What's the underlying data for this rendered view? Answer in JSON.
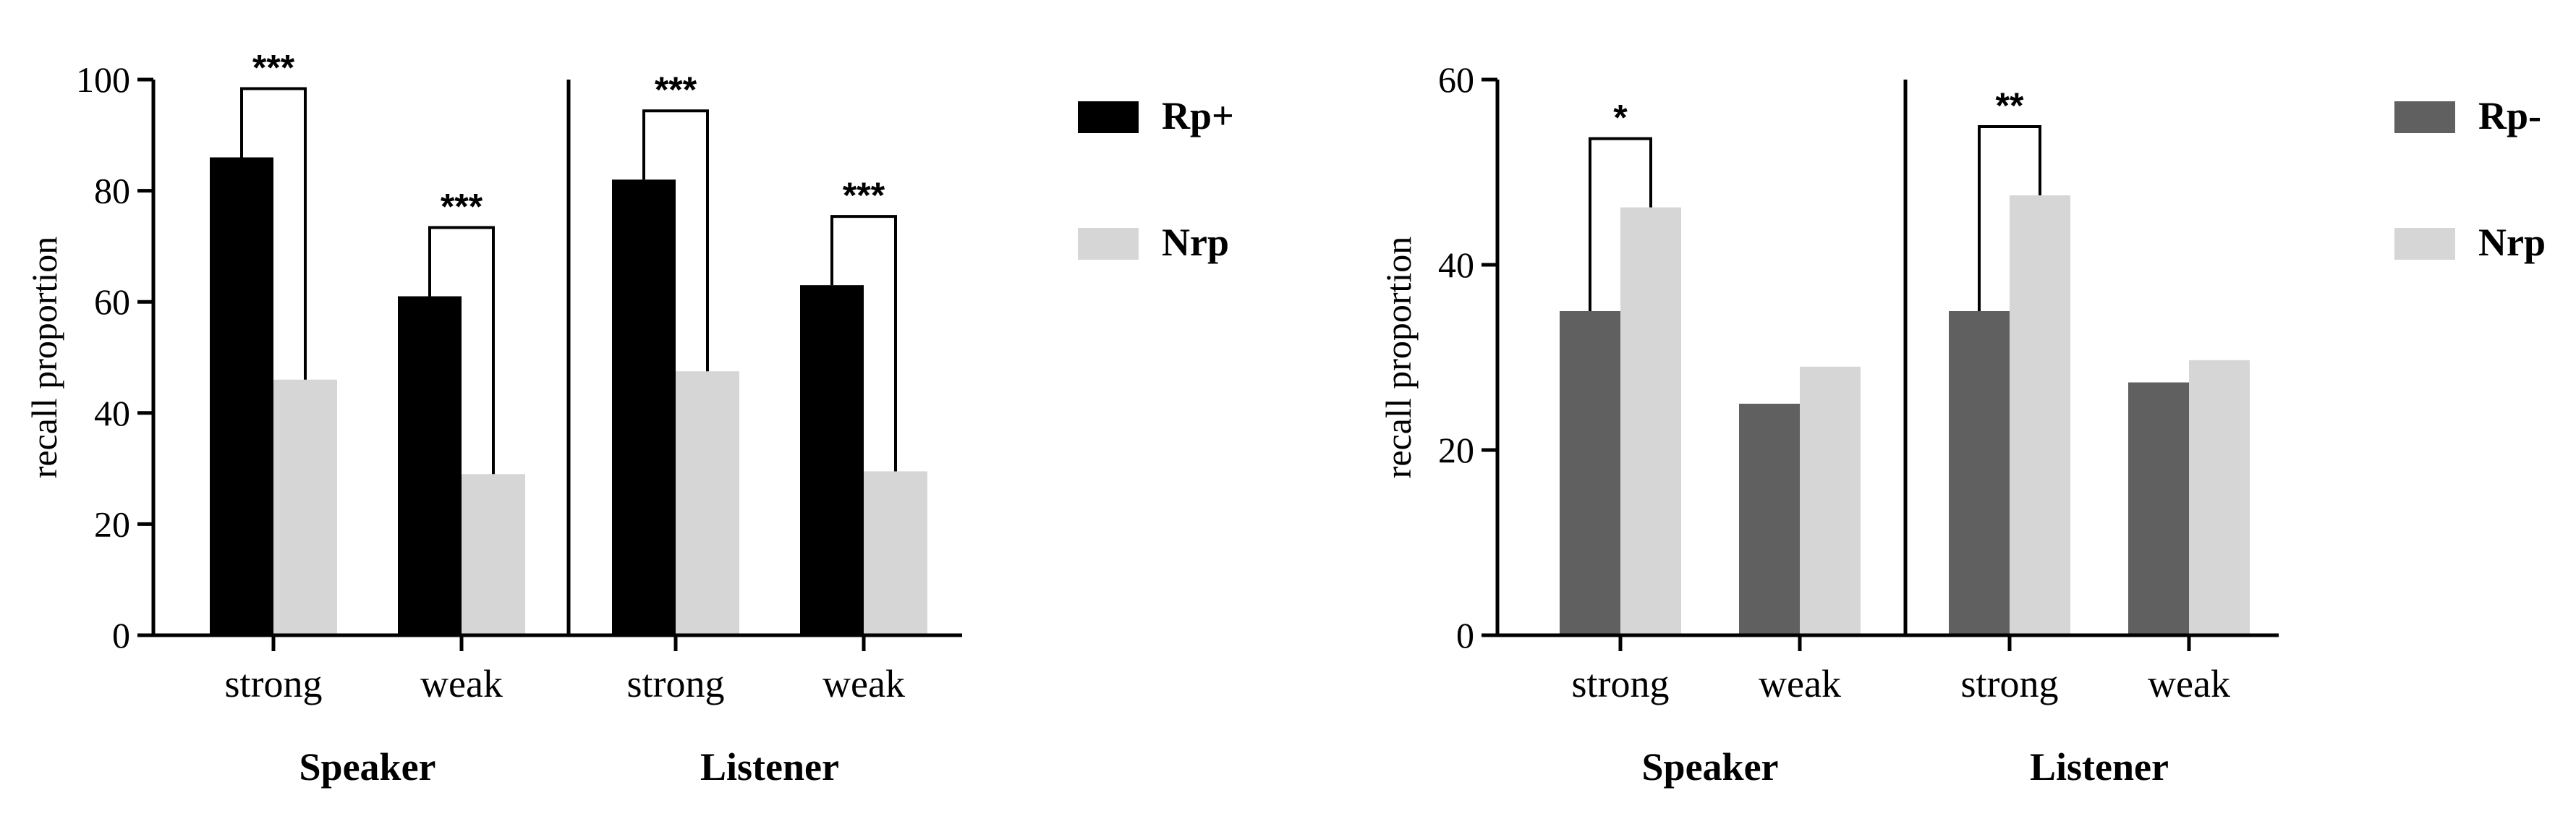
{
  "colors": {
    "rp_plus": "#000000",
    "rp_minus": "#606060",
    "nrp": "#d6d6d6",
    "axis": "#000000"
  },
  "chart_data": [
    {
      "type": "bar",
      "ylabel": "recall proportion",
      "ylim": [
        0,
        100
      ],
      "yticks": [
        0,
        20,
        40,
        60,
        80,
        100
      ],
      "groups": [
        "Speaker",
        "Listener"
      ],
      "categories": [
        "strong",
        "weak",
        "strong",
        "weak"
      ],
      "category_group": [
        0,
        0,
        1,
        1
      ],
      "series": [
        {
          "name": "Rp+",
          "values": [
            86,
            61,
            82,
            63
          ],
          "color_key": "rp_plus"
        },
        {
          "name": "Nrp",
          "values": [
            46,
            29,
            47.5,
            29.5
          ],
          "color_key": "nrp"
        }
      ],
      "significance": [
        "***",
        "***",
        "***",
        "***"
      ],
      "legend_position": "right"
    },
    {
      "type": "bar",
      "ylabel": "recall proportion",
      "ylim": [
        0,
        60
      ],
      "yticks": [
        0,
        20,
        40,
        60
      ],
      "groups": [
        "Speaker",
        "Listener"
      ],
      "categories": [
        "strong",
        "weak",
        "strong",
        "weak"
      ],
      "category_group": [
        0,
        0,
        1,
        1
      ],
      "series": [
        {
          "name": "Rp-",
          "values": [
            35,
            25,
            35,
            27.3
          ],
          "color_key": "rp_minus"
        },
        {
          "name": "Nrp",
          "values": [
            46.2,
            29,
            47.5,
            29.7
          ],
          "color_key": "nrp"
        }
      ],
      "significance": [
        "*",
        "",
        "**",
        ""
      ],
      "legend_position": "right"
    }
  ]
}
